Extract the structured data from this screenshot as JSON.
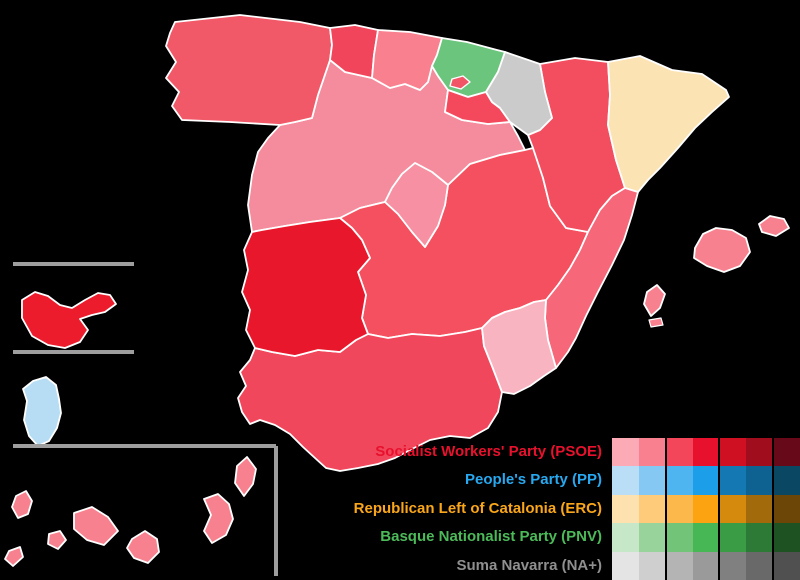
{
  "map": {
    "background": "#000000",
    "border_color": "#ffffff",
    "inset_line_color": "#9e9e9e",
    "regions": {
      "galicia": {
        "name": "Galicia",
        "color": "#f15968"
      },
      "asturias": {
        "name": "Asturias",
        "color": "#f0455a"
      },
      "cantabria": {
        "name": "Cantabria",
        "color": "#f8808f"
      },
      "basque_country": {
        "name": "Basque Country",
        "color": "#6cc57d"
      },
      "trevino_enclave": {
        "name": "Trevino enclave",
        "color": "#f15566"
      },
      "navarre": {
        "name": "Navarre",
        "color": "#cbcbcb"
      },
      "la_rioja": {
        "name": "La Rioja",
        "color": "#f4495d"
      },
      "aragon": {
        "name": "Aragon",
        "color": "#f34e60"
      },
      "catalonia": {
        "name": "Catalonia",
        "color": "#fce3b4"
      },
      "castile_and_leon": {
        "name": "Castile and Leon",
        "color": "#f58c9d"
      },
      "madrid": {
        "name": "Community of Madrid",
        "color": "#f690a2"
      },
      "castilla_la_mancha": {
        "name": "Castilla-La Mancha",
        "color": "#f4505f"
      },
      "extremadura": {
        "name": "Extremadura",
        "color": "#e9172b"
      },
      "valencia": {
        "name": "Valencian Community",
        "color": "#f56779"
      },
      "murcia": {
        "name": "Region of Murcia",
        "color": "#f9b4c1"
      },
      "andalusia": {
        "name": "Andalusia",
        "color": "#f0475c"
      },
      "balearic_islands": {
        "name": "Balearic Islands",
        "color": "#f8818f"
      },
      "canary_islands": {
        "name": "Canary Islands",
        "color": "#f8818f"
      },
      "ceuta": {
        "name": "Ceuta",
        "color": "#ec1c2d"
      },
      "melilla": {
        "name": "Melilla",
        "color": "#b7ddf4"
      }
    }
  },
  "legend": {
    "entries": [
      {
        "id": "psoe",
        "label": "Socialist Workers' Party (PSOE)",
        "text_color": "#e8112d",
        "shades": [
          "#fbaab6",
          "#f8808f",
          "#f4465a",
          "#e8112d",
          "#cf1023",
          "#a00d1d",
          "#68091a"
        ]
      },
      {
        "id": "pp",
        "label": "People's Party (PP)",
        "text_color": "#28a8ef",
        "shades": [
          "#b9def6",
          "#85c8f3",
          "#4fb5f0",
          "#1d9ee9",
          "#1478b2",
          "#0e6292",
          "#0a4763"
        ]
      },
      {
        "id": "erc",
        "label": "Republican Left of Catalonia (ERC)",
        "text_color": "#faa61a",
        "shades": [
          "#fde2af",
          "#fdcb79",
          "#fdb84b",
          "#fca311",
          "#d58a0e",
          "#a36a0b",
          "#6b4607"
        ]
      },
      {
        "id": "pnv",
        "label": "Basque Nationalist Party (PNV)",
        "text_color": "#4cba59",
        "shades": [
          "#c6e7c8",
          "#98d39c",
          "#72c479",
          "#47b654",
          "#3a9c45",
          "#2d7a36",
          "#1e5223"
        ]
      },
      {
        "id": "naplus",
        "label": "Suma Navarra (NA+)",
        "text_color": "#8f8f8f",
        "shades": [
          "#e4e4e4",
          "#cfcfcf",
          "#b4b4b4",
          "#9a9a9a",
          "#808080",
          "#696969",
          "#505050"
        ]
      }
    ]
  }
}
